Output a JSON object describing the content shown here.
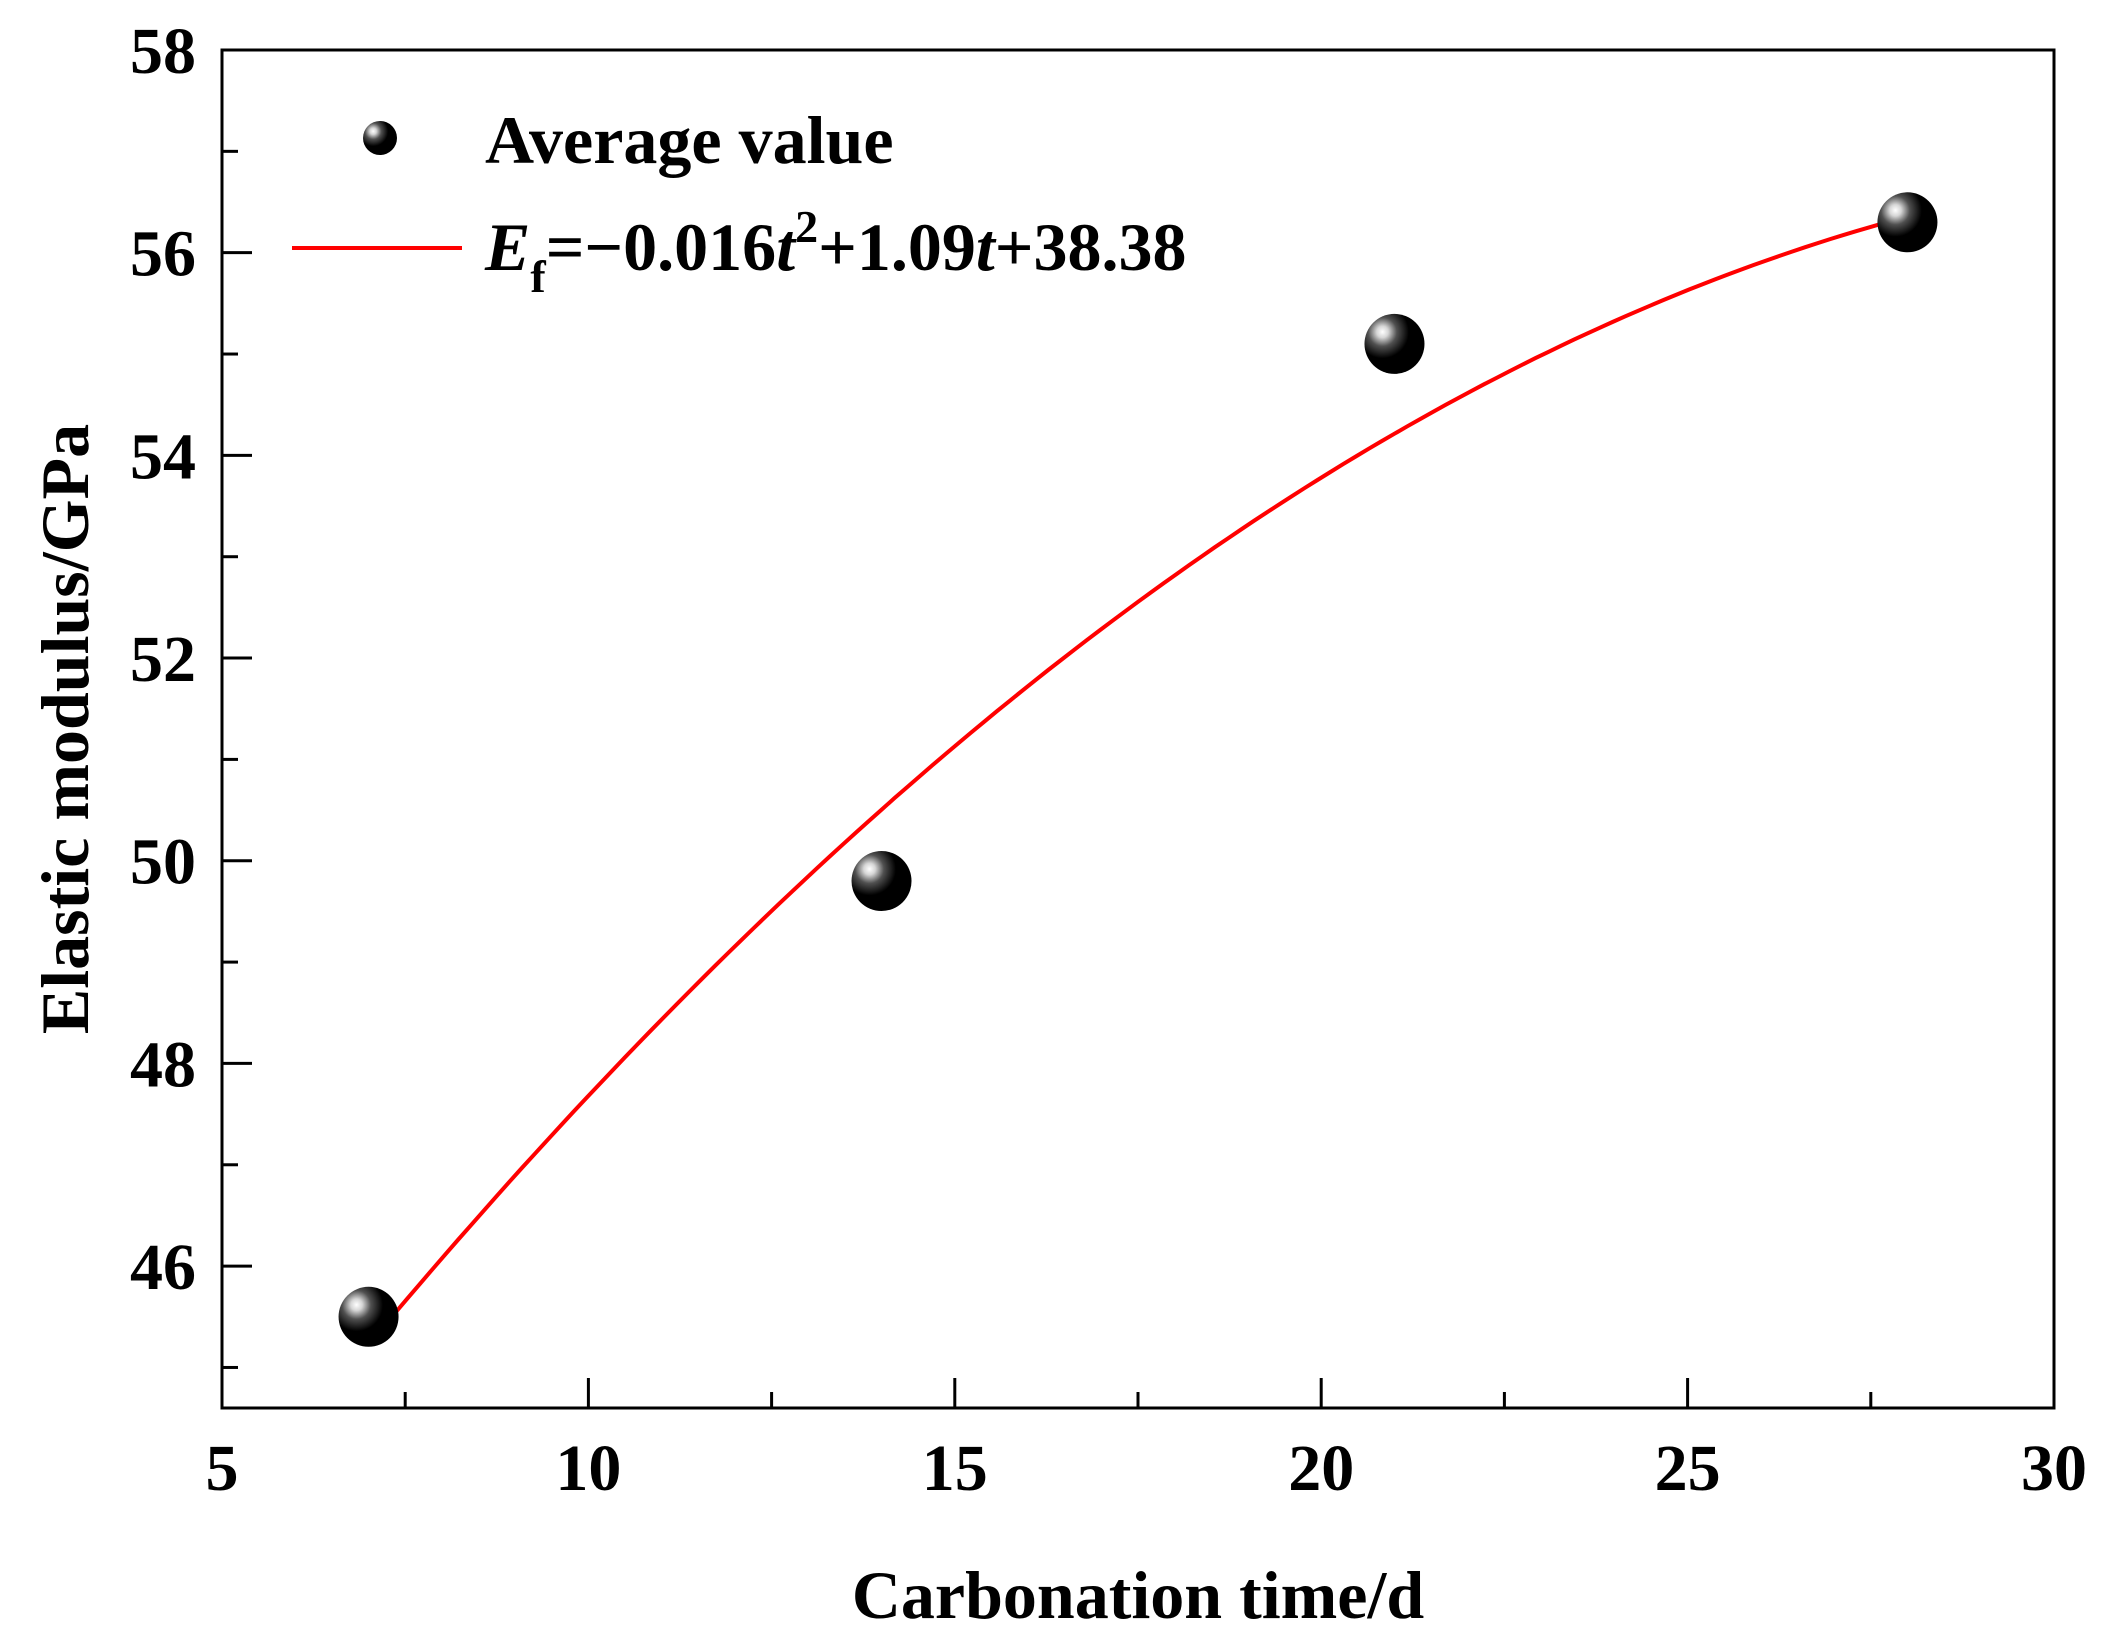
{
  "chart_data": {
    "type": "scatter",
    "title": "",
    "xlabel": "Carbonation time/d",
    "ylabel": "Elastic modulus/GPa",
    "xlim": [
      5,
      30
    ],
    "ylim": [
      44.6,
      58
    ],
    "x_ticks": [
      5,
      10,
      15,
      20,
      25,
      30
    ],
    "y_ticks": [
      46,
      48,
      50,
      52,
      54,
      56,
      58
    ],
    "series": [
      {
        "name": "Average value",
        "kind": "scatter",
        "x": [
          7,
          14,
          21,
          28
        ],
        "y": [
          45.5,
          49.8,
          55.1,
          56.3
        ]
      },
      {
        "name": "fit",
        "kind": "line",
        "coefficients": {
          "a": -0.016,
          "b": 1.09,
          "c": 38.38
        },
        "x_range": [
          7,
          28
        ]
      }
    ],
    "legend": {
      "position": "top-left",
      "marker_label": "Average value",
      "equation": {
        "lhs_symbol": "E",
        "lhs_subscript": "f",
        "part1": "=−0.016",
        "var1": "t",
        "power": "2",
        "part2": "+1.09",
        "var2": "t",
        "part3": "+38.38"
      }
    },
    "colors": {
      "fit_line": "#ff0000",
      "marker": "#000000",
      "axis": "#000000"
    }
  }
}
